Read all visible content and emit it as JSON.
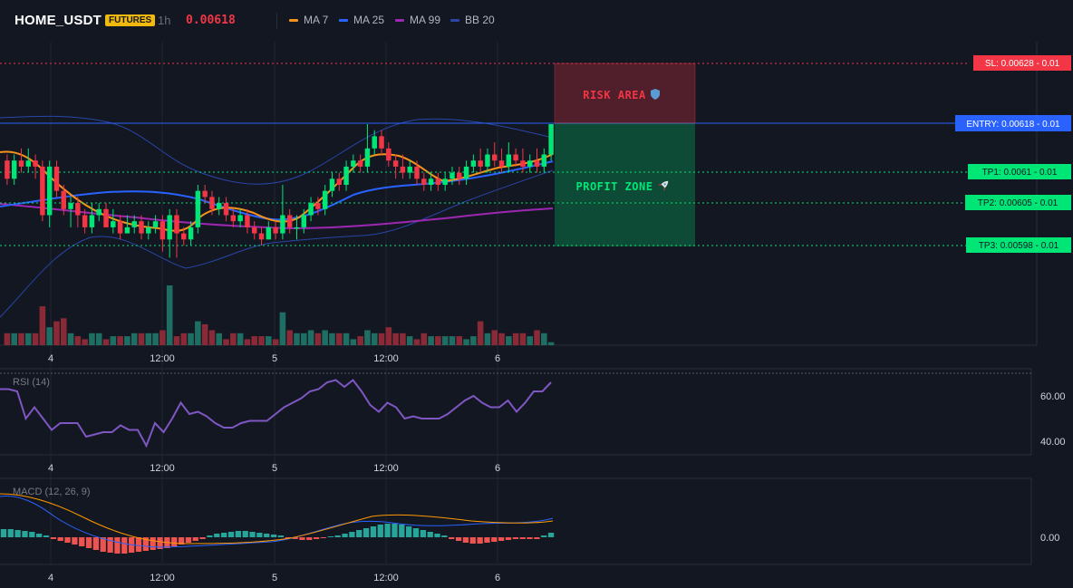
{
  "header": {
    "symbol": "HOME_USDT",
    "badge": "FUTURES",
    "timeframe": "1h",
    "last_price": "0.00618",
    "legend": [
      {
        "label": "MA 7",
        "color": "#f7931a"
      },
      {
        "label": "MA 25",
        "color": "#2962ff"
      },
      {
        "label": "MA 99",
        "color": "#9c27b0"
      },
      {
        "label": "BB 20",
        "color": "#2946a8"
      }
    ]
  },
  "levels": {
    "sl": {
      "label": "SL: 0.00628 - 0.01",
      "value": 0.00628,
      "color": "#f23645"
    },
    "entry": {
      "label": "ENTRY: 0.00618 - 0.01",
      "value": 0.00618,
      "color": "#2962ff"
    },
    "tp1": {
      "label": "TP1: 0.0061 - 0.01",
      "value": 0.0061,
      "color": "#00e676"
    },
    "tp2": {
      "label": "TP2: 0.00605 - 0.01",
      "value": 0.00605,
      "color": "#00e676"
    },
    "tp3": {
      "label": "TP3: 0.00598 - 0.01",
      "value": 0.00598,
      "color": "#00e676"
    }
  },
  "zones": {
    "risk_label": "RISK AREA",
    "risk_icon": "shield-icon",
    "profit_label": "PROFIT ZONE",
    "profit_icon": "rocket-icon"
  },
  "time_axis": [
    "4",
    "12:00",
    "5",
    "12:00",
    "6"
  ],
  "rsi": {
    "title": "RSI (14)",
    "ticks": [
      "60.00",
      "40.00"
    ],
    "tick_values": [
      60,
      40
    ],
    "color": "#7e57c2"
  },
  "macd": {
    "title": "MACD (12, 26, 9)",
    "ticks": [
      "0.00"
    ],
    "tick_values": [
      0
    ]
  },
  "chart_data": {
    "type": "candlestick",
    "series": [
      {
        "name": "MA 7"
      },
      {
        "name": "MA 25"
      },
      {
        "name": "MA 99"
      },
      {
        "name": "BB 20"
      }
    ],
    "candles": [
      [
        0.00612,
        0.00609,
        0.00613,
        0.00608
      ],
      [
        0.00609,
        0.00612,
        0.00613,
        0.00608
      ],
      [
        0.00612,
        0.00611,
        0.00614,
        0.0061
      ],
      [
        0.00611,
        0.00612,
        0.00614,
        0.0061
      ],
      [
        0.00612,
        0.00611,
        0.00613,
        0.00609
      ],
      [
        0.00611,
        0.00603,
        0.00612,
        0.00602
      ],
      [
        0.00603,
        0.00611,
        0.00612,
        0.00601
      ],
      [
        0.00611,
        0.00607,
        0.00612,
        0.00606
      ],
      [
        0.00607,
        0.00604,
        0.00608,
        0.00603
      ],
      [
        0.00604,
        0.00605,
        0.00606,
        0.00601
      ],
      [
        0.00605,
        0.00603,
        0.00606,
        0.00601
      ],
      [
        0.00603,
        0.00601,
        0.00604,
        0.006
      ],
      [
        0.00601,
        0.00603,
        0.00605,
        0.006
      ],
      [
        0.00603,
        0.00604,
        0.00605,
        0.00602
      ],
      [
        0.00604,
        0.00601,
        0.00605,
        0.00601
      ],
      [
        0.00601,
        0.00602,
        0.00604,
        0.006
      ],
      [
        0.00602,
        0.006,
        0.00603,
        0.00599
      ],
      [
        0.006,
        0.00601,
        0.00603,
        0.006
      ],
      [
        0.00601,
        0.00602,
        0.00603,
        0.006
      ],
      [
        0.00602,
        0.006,
        0.00603,
        0.00599
      ],
      [
        0.006,
        0.00601,
        0.00602,
        0.00599
      ],
      [
        0.00601,
        0.00602,
        0.00603,
        0.006
      ],
      [
        0.00602,
        0.00599,
        0.00603,
        0.00597
      ],
      [
        0.00599,
        0.00603,
        0.00604,
        0.00596
      ],
      [
        0.00603,
        0.006,
        0.00604,
        0.00596
      ],
      [
        0.006,
        0.00599,
        0.00601,
        0.00598
      ],
      [
        0.00599,
        0.00601,
        0.00602,
        0.00598
      ],
      [
        0.00601,
        0.00607,
        0.00608,
        0.006
      ],
      [
        0.00607,
        0.00606,
        0.00608,
        0.00605
      ],
      [
        0.00606,
        0.00604,
        0.00607,
        0.00603
      ],
      [
        0.00604,
        0.00605,
        0.00606,
        0.00603
      ],
      [
        0.00605,
        0.00603,
        0.00606,
        0.00602
      ],
      [
        0.00603,
        0.00602,
        0.00604,
        0.00601
      ],
      [
        0.00602,
        0.00603,
        0.00604,
        0.00601
      ],
      [
        0.00603,
        0.00601,
        0.00604,
        0.006
      ],
      [
        0.00601,
        0.006,
        0.00602,
        0.00599
      ],
      [
        0.006,
        0.00599,
        0.00601,
        0.00598
      ],
      [
        0.00599,
        0.00601,
        0.00602,
        0.00599
      ],
      [
        0.00601,
        0.006,
        0.00602,
        0.00599
      ],
      [
        0.006,
        0.00603,
        0.00608,
        0.00599
      ],
      [
        0.00603,
        0.00601,
        0.00604,
        0.006
      ],
      [
        0.00601,
        0.00601,
        0.00603,
        0.00599
      ],
      [
        0.00601,
        0.00603,
        0.00604,
        0.006
      ],
      [
        0.00603,
        0.00605,
        0.00606,
        0.00602
      ],
      [
        0.00605,
        0.00604,
        0.00606,
        0.00603
      ],
      [
        0.00604,
        0.00607,
        0.00608,
        0.00603
      ],
      [
        0.00607,
        0.00609,
        0.0061,
        0.00606
      ],
      [
        0.00609,
        0.00608,
        0.0061,
        0.00607
      ],
      [
        0.00608,
        0.00611,
        0.00612,
        0.00607
      ],
      [
        0.00611,
        0.00612,
        0.00613,
        0.0061
      ],
      [
        0.00612,
        0.00611,
        0.00613,
        0.0061
      ],
      [
        0.00611,
        0.00614,
        0.00618,
        0.0061
      ],
      [
        0.00614,
        0.00616,
        0.00617,
        0.00613
      ],
      [
        0.00616,
        0.00614,
        0.00617,
        0.00613
      ],
      [
        0.00614,
        0.00612,
        0.00615,
        0.00611
      ],
      [
        0.00612,
        0.00611,
        0.00613,
        0.00609
      ],
      [
        0.00611,
        0.0061,
        0.00613,
        0.00609
      ],
      [
        0.0061,
        0.00611,
        0.00612,
        0.00609
      ],
      [
        0.00611,
        0.00609,
        0.00612,
        0.00608
      ],
      [
        0.00609,
        0.00608,
        0.0061,
        0.00607
      ],
      [
        0.00608,
        0.00609,
        0.0061,
        0.00607
      ],
      [
        0.00609,
        0.00608,
        0.0061,
        0.00607
      ],
      [
        0.00608,
        0.00609,
        0.0061,
        0.00607
      ],
      [
        0.00609,
        0.0061,
        0.00611,
        0.00608
      ],
      [
        0.0061,
        0.00609,
        0.00611,
        0.00608
      ],
      [
        0.00609,
        0.00611,
        0.00612,
        0.00608
      ],
      [
        0.00611,
        0.00612,
        0.00613,
        0.0061
      ],
      [
        0.00612,
        0.00611,
        0.00614,
        0.0061
      ],
      [
        0.00611,
        0.00613,
        0.00614,
        0.0061
      ],
      [
        0.00613,
        0.00612,
        0.00615,
        0.00611
      ],
      [
        0.00612,
        0.00611,
        0.00614,
        0.0061
      ],
      [
        0.00611,
        0.00613,
        0.00615,
        0.0061
      ],
      [
        0.00613,
        0.00612,
        0.00614,
        0.00611
      ],
      [
        0.00612,
        0.00611,
        0.00614,
        0.0061
      ],
      [
        0.00611,
        0.00612,
        0.00613,
        0.0061
      ],
      [
        0.00612,
        0.00611,
        0.00614,
        0.0061
      ],
      [
        0.00611,
        0.00613,
        0.00614,
        0.0061
      ],
      [
        0.00613,
        0.00618,
        0.00618,
        0.00612
      ]
    ],
    "volumes": [
      4,
      4,
      4,
      4,
      4,
      13,
      6,
      8,
      9,
      4,
      3,
      2,
      4,
      4,
      2,
      3,
      3,
      3,
      4,
      4,
      4,
      4,
      5,
      20,
      3,
      4,
      4,
      8,
      7,
      5,
      4,
      2,
      4,
      4,
      2,
      3,
      3,
      3,
      2,
      11,
      5,
      4,
      4,
      5,
      4,
      5,
      4,
      4,
      4,
      2,
      3,
      5,
      4,
      4,
      6,
      4,
      4,
      3,
      2,
      4,
      3,
      3,
      3,
      3,
      3,
      2,
      3,
      8,
      4,
      5,
      4,
      3,
      4,
      4,
      3,
      5,
      4,
      1
    ],
    "rsi": [
      63,
      63,
      62,
      50,
      55,
      50,
      45,
      48,
      48,
      48,
      42,
      43,
      44,
      44,
      47,
      45,
      45,
      38,
      48,
      44,
      50,
      57,
      52,
      53,
      51,
      48,
      46,
      46,
      48,
      49,
      49,
      49,
      52,
      55,
      57,
      59,
      62,
      63,
      66,
      67,
      64,
      67,
      62,
      56,
      53,
      57,
      55,
      50,
      51,
      50,
      50,
      50,
      52,
      55,
      58,
      60,
      57,
      55,
      55,
      58,
      53,
      57,
      62,
      62,
      66
    ]
  }
}
